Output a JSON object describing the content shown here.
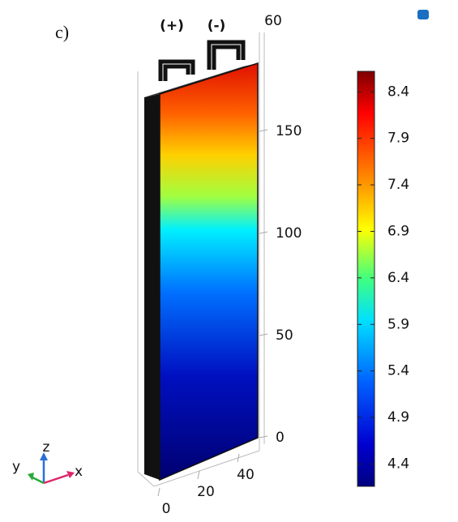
{
  "panel_label": "c)",
  "terminals": [
    "(+)",
    "(-)"
  ],
  "top_label": "60",
  "z_axis": {
    "ticks": [
      0,
      50,
      100,
      150
    ]
  },
  "x_axis": {
    "ticks": [
      0,
      20,
      40
    ]
  },
  "triad": {
    "z": "z",
    "y": "y",
    "x": "x"
  },
  "colorbar": {
    "lim": [
      4.16,
      8.62
    ],
    "ticks": [
      4.4,
      4.9,
      5.4,
      5.9,
      6.4,
      6.9,
      7.4,
      7.9,
      8.4
    ]
  }
}
